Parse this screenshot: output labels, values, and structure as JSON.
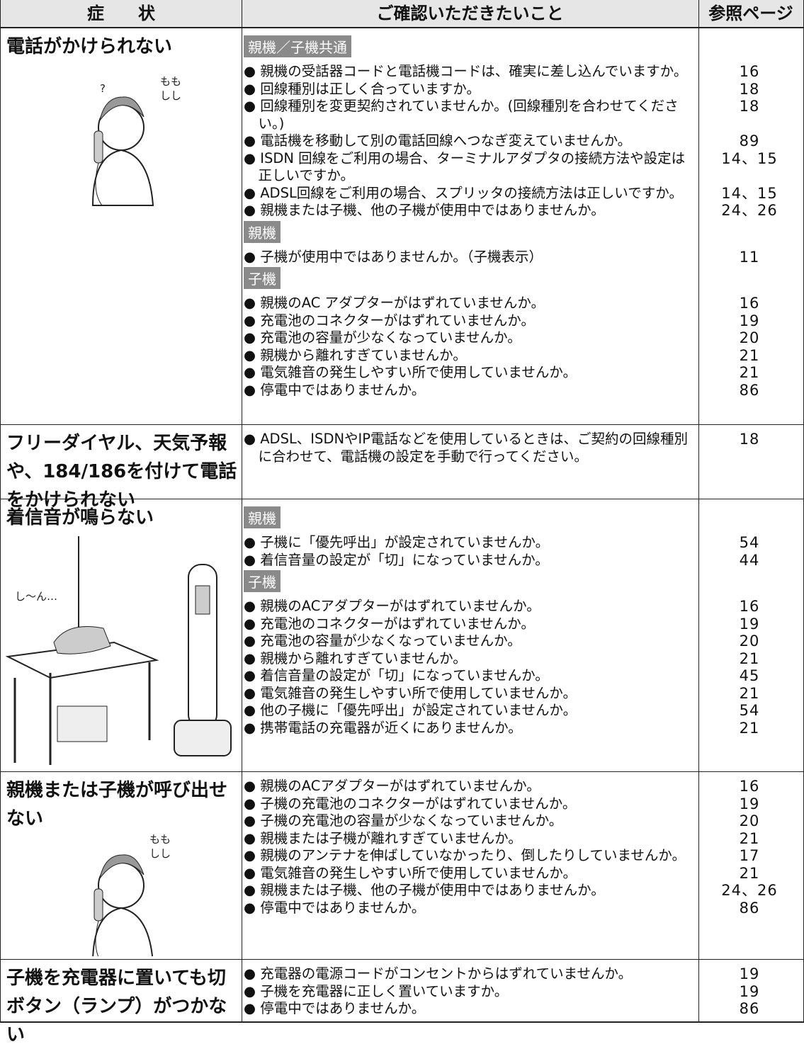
{
  "table": {
    "header": [
      "症　　状",
      "ご確認いただきたいこと",
      "参照ページ"
    ],
    "rows": [
      {
        "symptom": "電話がかけられない",
        "illustration_text": [
          "?",
          "もも",
          "しし"
        ],
        "groups": [
          {
            "label": "親機／子機共通",
            "items": [
              {
                "text": "● 親機の受話器コードと電話機コードは、確実に差し込んでいますか。",
                "page": "16"
              },
              {
                "text": "● 回線種別は正しく合っていますか。",
                "page": "18"
              },
              {
                "text": "● 回線種別を変更契約されていませんか。(回線種別を合わせてください。)",
                "page": "18"
              },
              {
                "text": "● 電話機を移動して別の電話回線へつなぎ変えていませんか。",
                "page": "89"
              },
              {
                "text": "● ISDN 回線をご利用の場合、ターミナルアダプタの接続方法や設定は正しいですか。",
                "page": "14、15"
              },
              {
                "text": "● ADSL回線をご利用の場合、スプリッタの接続方法は正しいですか。",
                "page": "14、15"
              },
              {
                "text": "● 親機または子機、他の子機が使用中ではありませんか。",
                "page": "24、26"
              }
            ]
          },
          {
            "label": "親機",
            "items": [
              {
                "text": "● 子機が使用中ではありませんか。（子機表示）",
                "page": "11"
              }
            ]
          },
          {
            "label": "子機",
            "items": [
              {
                "text": "● 親機のAC アダプターがはずれていませんか。",
                "page": "16"
              },
              {
                "text": "● 充電池のコネクターがはずれていませんか。",
                "page": "19"
              },
              {
                "text": "● 充電池の容量が少なくなっていませんか。",
                "page": "20"
              },
              {
                "text": "● 親機から離れすぎていませんか。",
                "page": "21"
              },
              {
                "text": "● 電気雑音の発生しやすい所で使用していませんか。",
                "page": "21"
              },
              {
                "text": "● 停電中ではありませんか。",
                "page": "86"
              }
            ]
          }
        ]
      },
      {
        "symptom": "フリーダイヤル、天気予報や、184/186を付けて電話をかけられない",
        "groups": [
          {
            "items": [
              {
                "text": "● ADSL、ISDNやIP電話などを使用しているときは、ご契約の回線種別に合わせて、電話機の設定を手動で行ってください。",
                "page": "18"
              }
            ]
          }
        ]
      },
      {
        "symptom": "着信音が鳴らない",
        "illustration_text": [
          "し〜ん…"
        ],
        "groups": [
          {
            "label": "親機",
            "items": [
              {
                "text": "● 子機に「優先呼出」が設定されていませんか。",
                "page": "54"
              },
              {
                "text": "● 着信音量の設定が「切」になっていませんか。",
                "page": "44"
              }
            ]
          },
          {
            "label": "子機",
            "items": [
              {
                "text": "● 親機のACアダプターがはずれていませんか。",
                "page": "16"
              },
              {
                "text": "● 充電池のコネクターがはずれていませんか。",
                "page": "19"
              },
              {
                "text": "● 充電池の容量が少なくなっていませんか。",
                "page": "20"
              },
              {
                "text": "● 親機から離れすぎていませんか。",
                "page": "21"
              },
              {
                "text": "● 着信音量の設定が「切」になっていませんか。",
                "page": "45"
              },
              {
                "text": "● 電気雑音の発生しやすい所で使用していませんか。",
                "page": "21"
              },
              {
                "text": "● 他の子機に「優先呼出」が設定されていませんか。",
                "page": "54"
              },
              {
                "text": "● 携帯電話の充電器が近くにありませんか。",
                "page": "21"
              }
            ]
          }
        ]
      },
      {
        "symptom": "親機または子機が呼び出せない",
        "illustration_text": [
          "もも",
          "しし"
        ],
        "groups": [
          {
            "items": [
              {
                "text": "● 親機のACアダプターがはずれていませんか。",
                "page": "16"
              },
              {
                "text": "● 子機の充電池のコネクターがはずれていませんか。",
                "page": "19"
              },
              {
                "text": "● 子機の充電池の容量が少なくなっていませんか。",
                "page": "20"
              },
              {
                "text": "● 親機または子機が離れすぎていませんか。",
                "page": "21"
              },
              {
                "text": "● 親機のアンテナを伸ばしていなかったり、倒したりしていませんか。",
                "page": "17"
              },
              {
                "text": "● 電気雑音の発生しやすい所で使用していませんか。",
                "page": "21"
              },
              {
                "text": "● 親機または子機、他の子機が使用中ではありませんか。",
                "page": "24、26"
              },
              {
                "text": "● 停電中ではありませんか。",
                "page": "86"
              }
            ]
          }
        ]
      },
      {
        "symptom": "子機を充電器に置いても切ボタン（ランプ）がつかない",
        "groups": [
          {
            "items": [
              {
                "text": "● 充電器の電源コードがコンセントからはずれていませんか。",
                "page": "19"
              },
              {
                "text": "● 子機を充電器に正しく置いていますか。",
                "page": "19"
              },
              {
                "text": "● 停電中ではありませんか。",
                "page": "86"
              }
            ]
          }
        ]
      }
    ]
  }
}
